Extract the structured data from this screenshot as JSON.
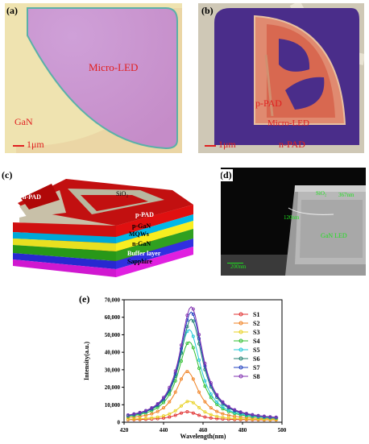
{
  "panels": {
    "a": {
      "label": "(a)",
      "text_microled": "Micro-LED",
      "text_gan": "GaN",
      "scale": "1μm"
    },
    "b": {
      "label": "(b)",
      "text_ppad": "p-PAD",
      "text_microled": "Micro-LED",
      "text_npad": "n-PAD",
      "scale": "1μm"
    },
    "c": {
      "label": "(c)",
      "layers": [
        "n-PAD",
        "SiO₂",
        "p-PAD",
        "p-GaN",
        "MQWs",
        "n-GaN",
        "Buffer layer",
        "Sapphire"
      ]
    },
    "d": {
      "label": "(d)",
      "text_sio2": "SiO₂",
      "text_367": "367nm",
      "text_120": "120nm",
      "text_ganled": "GaN LED",
      "scale": "200nm"
    },
    "e": {
      "label": "(e)"
    }
  },
  "chart_data": {
    "type": "line",
    "xlabel": "Wavelength(nm)",
    "ylabel": "Intensity(a.u.)",
    "xlim": [
      420,
      500
    ],
    "ylim": [
      0,
      70000
    ],
    "xticks": [
      420,
      440,
      460,
      480,
      500
    ],
    "yticks": [
      "0",
      "10,000",
      "20,000",
      "30,000",
      "40,000",
      "50,000",
      "60,000",
      "70,000"
    ],
    "legend_position": "right",
    "series": [
      {
        "name": "S1",
        "color": "#e03030",
        "marker": "o",
        "peak_x": 452,
        "peak": 6000
      },
      {
        "name": "S2",
        "color": "#f08020",
        "marker": "o",
        "peak_x": 452,
        "peak": 29000
      },
      {
        "name": "S3",
        "color": "#e8d020",
        "marker": "o",
        "peak_x": 453,
        "peak": 12000
      },
      {
        "name": "S4",
        "color": "#30c030",
        "marker": "o",
        "peak_x": 453,
        "peak": 46000
      },
      {
        "name": "S5",
        "color": "#20c8d8",
        "marker": "o",
        "peak_x": 453,
        "peak": 53000
      },
      {
        "name": "S6",
        "color": "#208070",
        "marker": "o",
        "peak_x": 454,
        "peak": 59000
      },
      {
        "name": "S7",
        "color": "#2040c0",
        "marker": ">",
        "peak_x": 454,
        "peak": 63000
      },
      {
        "name": "S8",
        "color": "#8030b0",
        "marker": "o",
        "peak_x": 454,
        "peak": 66000
      }
    ]
  }
}
